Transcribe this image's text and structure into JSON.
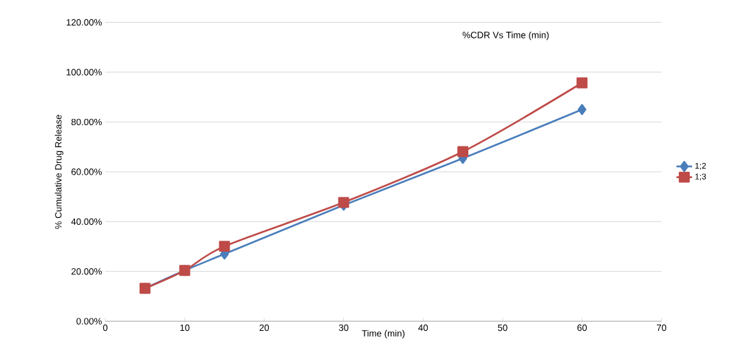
{
  "chart_data": {
    "type": "line",
    "title": "%CDR Vs Time (min)",
    "xlabel": "Time (min)",
    "ylabel": "% Cumulative Drug Release",
    "xlim": [
      0,
      70
    ],
    "xticks": [
      0,
      10,
      20,
      30,
      40,
      50,
      60,
      70
    ],
    "ylim": [
      0,
      120
    ],
    "yticks": [
      {
        "value": 0,
        "label": "0.00%"
      },
      {
        "value": 20,
        "label": "20.00%"
      },
      {
        "value": 40,
        "label": "40.00%"
      },
      {
        "value": 60,
        "label": "60.00%"
      },
      {
        "value": 80,
        "label": "80.00%"
      },
      {
        "value": 100,
        "label": "100.00%"
      },
      {
        "value": 120,
        "label": "120.00%"
      }
    ],
    "grid": "y",
    "legend": "right",
    "series": [
      {
        "name": "1;2",
        "color": "#4a7ebb",
        "marker": "diamond",
        "x": [
          5,
          10,
          15,
          30,
          45,
          60
        ],
        "values": [
          13.2,
          20.4,
          27.0,
          46.6,
          65.4,
          85.0
        ]
      },
      {
        "name": "1;3",
        "color": "#be4b48",
        "marker": "square",
        "x": [
          5,
          10,
          15,
          30,
          45,
          60
        ],
        "values": [
          13.2,
          20.4,
          30.1,
          47.7,
          68.1,
          95.7
        ]
      }
    ]
  }
}
